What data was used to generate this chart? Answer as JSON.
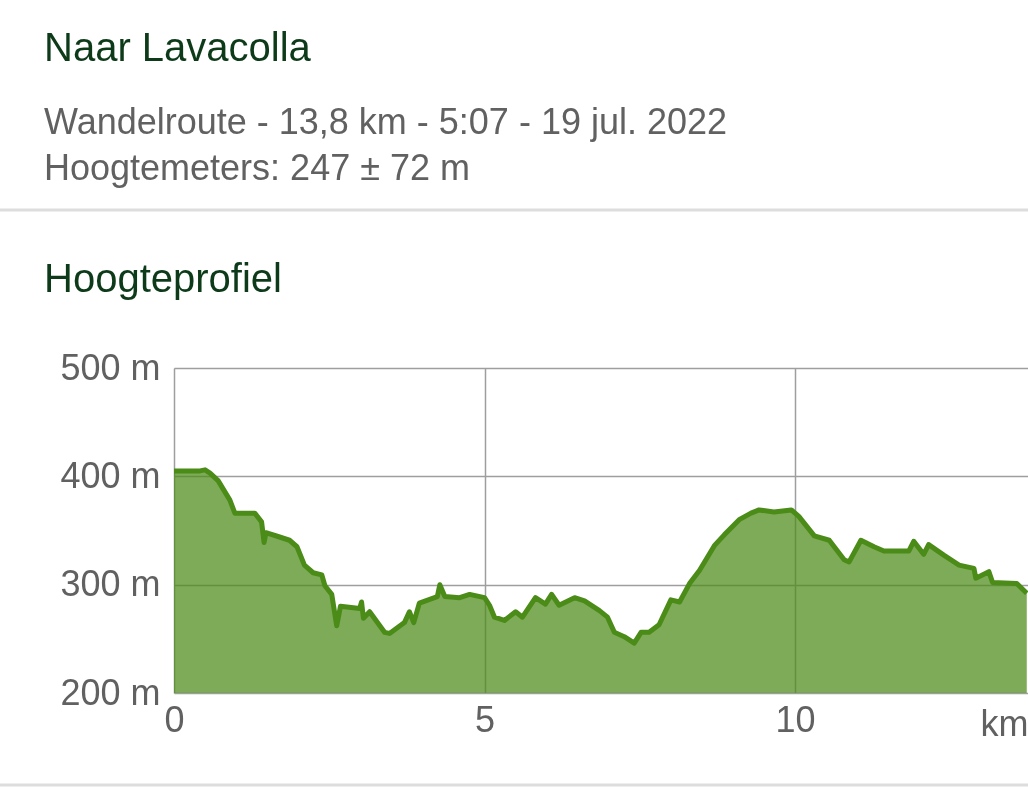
{
  "chart_data": {
    "type": "area",
    "title": "Naar Lavacolla",
    "subtitle": "Wandelroute - 13,8 km - 5:07 - 19 jul. 2022\nHoogtemeters: 247 ± 72 m",
    "annotations": [
      "Hoogteprofiel"
    ],
    "xlabel": "km",
    "x": [
      0,
      0.42,
      0.5,
      0.58,
      0.71,
      0.9,
      0.98,
      1.3,
      1.41,
      1.45,
      1.48,
      1.7,
      1.86,
      1.98,
      2.1,
      2.24,
      2.38,
      2.43,
      2.54,
      2.62,
      2.68,
      2.99,
      3.02,
      3.05,
      3.15,
      3.39,
      3.47,
      3.71,
      3.79,
      3.86,
      3.95,
      4.24,
      4.28,
      4.36,
      4.6,
      4.76,
      5.0,
      5.08,
      5.16,
      5.32,
      5.5,
      5.61,
      5.82,
      5.98,
      6.08,
      6.2,
      6.45,
      6.61,
      6.85,
      6.98,
      7.09,
      7.25,
      7.41,
      7.52,
      7.65,
      7.81,
      8.0,
      8.14,
      8.3,
      8.46,
      8.7,
      8.86,
      9.1,
      9.29,
      9.42,
      9.66,
      9.94,
      10.06,
      10.31,
      10.55,
      10.79,
      10.87,
      11.06,
      11.27,
      11.43,
      11.83,
      11.91,
      12.07,
      12.15,
      12.4,
      12.64,
      12.88,
      12.91,
      13.12,
      13.18,
      13.57,
      13.73
    ],
    "series": [
      {
        "color": "#4b8b17",
        "values": [
          405,
          405,
          406,
          403,
          396,
          378,
          366,
          366,
          358,
          339,
          348,
          344,
          341,
          335,
          318,
          311,
          309,
          299,
          291,
          262,
          280,
          278,
          284,
          269,
          275,
          256,
          255,
          265,
          275,
          265,
          283,
          289,
          300,
          289,
          288,
          291,
          288,
          281,
          270,
          267,
          275,
          270,
          288,
          282,
          291,
          281,
          288,
          285,
          276,
          270,
          256,
          252,
          246,
          256,
          256,
          263,
          286,
          284,
          301,
          313,
          336,
          346,
          360,
          366,
          369,
          367,
          369,
          363,
          345,
          341,
          323,
          321,
          341,
          335,
          331,
          331,
          340,
          328,
          337,
          327,
          318,
          315,
          306,
          312,
          302,
          301,
          292
        ]
      }
    ],
    "xlim": [
      0,
      13.75
    ],
    "xticks": [
      0,
      5,
      10
    ],
    "ylim": [
      200,
      500
    ],
    "yticks": [
      {
        "value": 200,
        "label": "200 m"
      },
      {
        "value": 300,
        "label": "300 m"
      },
      {
        "value": 400,
        "label": "400 m"
      },
      {
        "value": 500,
        "label": "500 m"
      }
    ],
    "grid": true
  }
}
